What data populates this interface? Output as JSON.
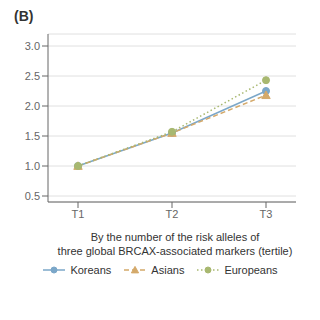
{
  "chart_data": {
    "type": "line",
    "title": "(B)",
    "x_label": [
      "By the number of the risk alleles of",
      "three global BRCAX-associated markers (tertile)"
    ],
    "categories": [
      "T1",
      "T2",
      "T3"
    ],
    "series": [
      {
        "name": "Koreans",
        "color": "#7ba7c9",
        "values": [
          1.0,
          1.55,
          2.25
        ],
        "marker": "circle",
        "line_style": "solid"
      },
      {
        "name": "Asians",
        "color": "#d4a96a",
        "values": [
          1.0,
          1.55,
          2.18
        ],
        "marker": "triangle",
        "line_style": "dashed"
      },
      {
        "name": "Europeans",
        "color": "#a8b870",
        "values": [
          1.0,
          1.57,
          2.43
        ],
        "marker": "circle",
        "line_style": "dotted"
      }
    ],
    "ylim": [
      0.4,
      3.2
    ],
    "yticks": [
      0.5,
      {
        "value": 1.0,
        "label": "1.0"
      },
      1.5,
      {
        "value": 2.0,
        "label": "2.0"
      },
      2.5,
      {
        "value": 3.0,
        "label": "3.0"
      }
    ],
    "grid": true,
    "legend": "bottom"
  }
}
